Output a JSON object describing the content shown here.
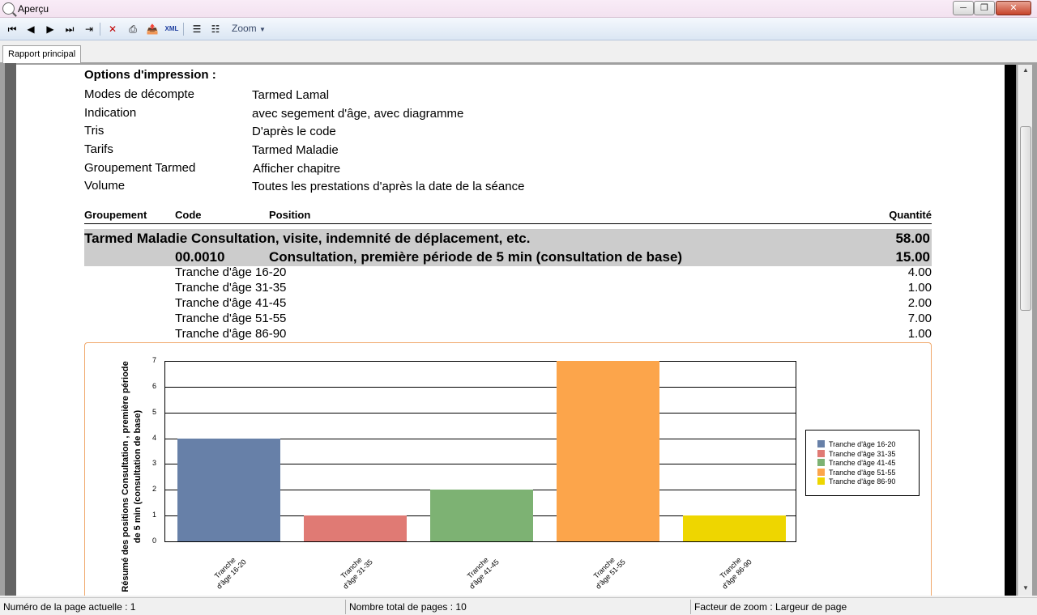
{
  "window": {
    "title": "Aperçu"
  },
  "toolbar": {
    "icons": [
      "first-page-icon",
      "previous-page-icon",
      "next-page-icon",
      "last-page-icon",
      "goto-page-icon",
      "close-icon",
      "print-icon",
      "export-icon",
      "xml-export-icon",
      "tree-icon",
      "find-icon"
    ],
    "xml_label": "XML",
    "zoom_label": "Zoom"
  },
  "tabs": [
    {
      "label": "Rapport principal"
    }
  ],
  "report": {
    "options_title": "Options d'impression :",
    "options": [
      {
        "label": "Modes de décompte",
        "value": "Tarmed Lamal"
      },
      {
        "label": "Indication",
        "value": "avec segement d'âge, avec diagramme"
      },
      {
        "label": "Tris",
        "value": "D'après le code"
      },
      {
        "label": "Tarifs",
        "value": "Tarmed Maladie"
      },
      {
        "label": "Groupement Tarmed",
        "value": "Afficher chapitre"
      },
      {
        "label": "Volume",
        "value": "Toutes les prestations d'après la date de la séance"
      }
    ],
    "columns": {
      "group": "Groupement",
      "code": "Code",
      "position": "Position",
      "quantity": "Quantité"
    },
    "group_row": {
      "text": "Tarmed Maladie Consultation, visite, indemnité de déplacement, etc.",
      "quantity": "58.00"
    },
    "code_row": {
      "code": "00.0010",
      "position": "Consultation, première période de 5 min (consultation de base)",
      "quantity": "15.00"
    },
    "age_rows": [
      {
        "label": "Tranche d'âge 16-20",
        "quantity": "4.00"
      },
      {
        "label": "Tranche d'âge 31-35",
        "quantity": "1.00"
      },
      {
        "label": "Tranche d'âge 41-45",
        "quantity": "2.00"
      },
      {
        "label": "Tranche d'âge 51-55",
        "quantity": "7.00"
      },
      {
        "label": "Tranche d'âge 86-90",
        "quantity": "1.00"
      }
    ]
  },
  "chart_data": {
    "type": "bar",
    "ylabel": "Résumé des positions Consultation , première période de 5 min (consultation de base)",
    "ylim": [
      0,
      7
    ],
    "yticks": [
      "0",
      "1",
      "2",
      "3",
      "4",
      "5",
      "6",
      "7"
    ],
    "grid": true,
    "legend_position": "right",
    "categories": [
      {
        "line1": "Tranche",
        "line2": "d'âge 16-20"
      },
      {
        "line1": "Tranche",
        "line2": "d'âge 31-35"
      },
      {
        "line1": "Tranche",
        "line2": "d'âge 41-45"
      },
      {
        "line1": "Tranche",
        "line2": "d'âge 51-55"
      },
      {
        "line1": "Tranche",
        "line2": "d'âge 86-90"
      }
    ],
    "values": [
      4,
      1,
      2,
      7,
      1
    ],
    "colors": [
      "#6780a8",
      "#e07a74",
      "#7db273",
      "#fca54b",
      "#eed600"
    ],
    "legend": [
      "Tranche d'âge 16-20",
      "Tranche d'âge 31-35",
      "Tranche d'âge 41-45",
      "Tranche d'âge 51-55",
      "Tranche d'âge 86-90"
    ]
  },
  "status": {
    "current_page": "Numéro de la page actuelle : 1",
    "total_pages": "Nombre total de pages : 10",
    "zoom_factor": "Facteur de zoom : Largeur de page"
  }
}
